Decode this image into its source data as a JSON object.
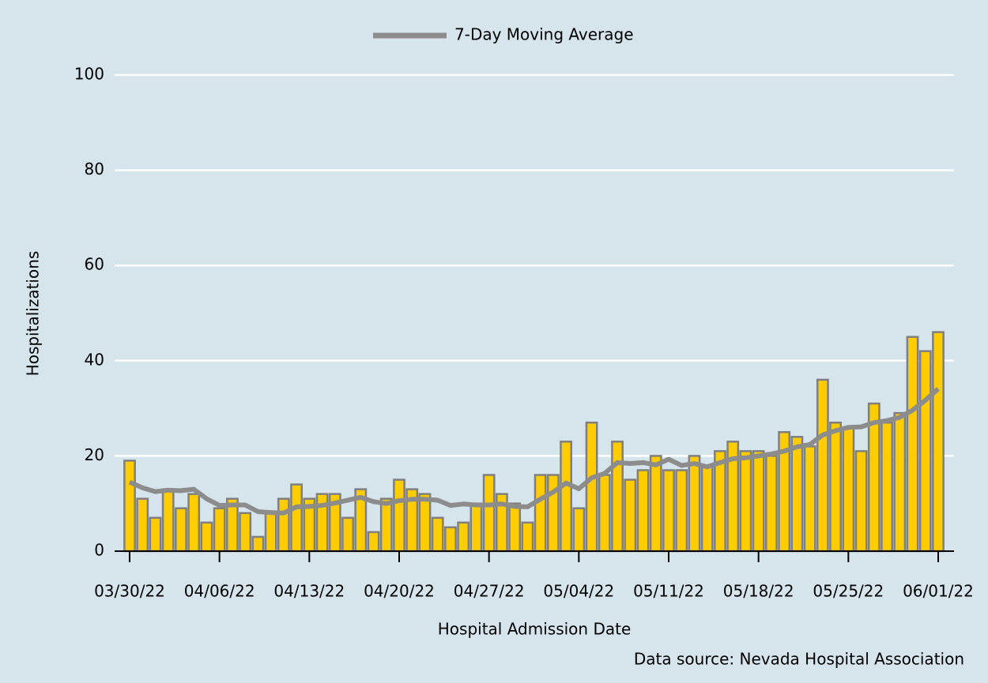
{
  "chart_data": {
    "type": "combo",
    "legend_label_note_free": null,
    "xlabel": "Hospital Admission Date",
    "ylabel": "Hospitalizations",
    "source": "Data source: Nevada Hospital Association",
    "categories": [
      "03/30/22",
      null,
      null,
      null,
      null,
      null,
      null,
      "04/06/22",
      null,
      null,
      null,
      null,
      null,
      null,
      "04/13/22",
      null,
      null,
      null,
      null,
      null,
      null,
      "04/20/22",
      null,
      null,
      null,
      null,
      null,
      null,
      "04/27/22",
      null,
      null,
      null,
      null,
      null,
      null,
      "05/04/22",
      null,
      null,
      null,
      null,
      null,
      null,
      "05/11/22",
      null,
      null,
      null,
      null,
      null,
      null,
      "05/18/22",
      null,
      null,
      null,
      null,
      null,
      null,
      "05/25/22",
      null,
      null,
      null,
      null,
      null,
      null,
      "06/01/22"
    ],
    "series": [
      {
        "type": "bar",
        "color": "#ffcc00",
        "values": [
          19,
          11,
          7,
          13,
          9,
          12,
          6,
          9,
          11,
          8,
          3,
          8,
          11,
          14,
          11,
          12,
          12,
          7,
          13,
          4,
          11,
          15,
          13,
          12,
          7,
          5,
          6,
          10,
          16,
          12,
          10,
          6,
          16,
          16,
          23,
          9,
          27,
          16,
          23,
          15,
          17,
          20,
          17,
          17,
          20,
          18,
          21,
          23,
          21,
          21,
          20,
          25,
          24,
          22,
          36,
          27,
          26,
          21,
          31,
          27,
          29,
          45,
          42,
          46
        ]
      },
      {
        "type": "line",
        "name": "7-Day Moving Average",
        "color": "#8c8c8c",
        "values": [
          14.5,
          13.3,
          12.5,
          12.8,
          12.7,
          13,
          11,
          9.6,
          9.7,
          9.7,
          8.3,
          8.1,
          8.0,
          9.3,
          9.4,
          9.6,
          10.1,
          10.7,
          11.3,
          10.4,
          10,
          10.6,
          10.9,
          10.9,
          10.7,
          9.6,
          9.9,
          9.7,
          9.7,
          9.9,
          9.4,
          9.3,
          10.9,
          12.4,
          14.3,
          13.1,
          15.4,
          16.3,
          18.6,
          18.4,
          18.6,
          18.1,
          19.3,
          18,
          18.4,
          17.7,
          18.6,
          19.4,
          19.6,
          20,
          20.4,
          21,
          21.9,
          22.4,
          24.4,
          25.3,
          26,
          26.1,
          27,
          27.4,
          28.1,
          29.6,
          31.7,
          34.1
        ]
      }
    ],
    "ylim": [
      0,
      100
    ],
    "yticks": [
      0,
      20,
      40,
      60,
      80,
      100
    ],
    "grid": true
  }
}
